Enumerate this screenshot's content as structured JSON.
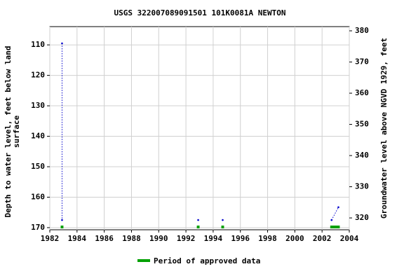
{
  "chart_data": {
    "type": "line",
    "title": "USGS 322007089091501 101K0081A NEWTON",
    "ylabel": [
      "Depth to water level, feet below land",
      "surface"
    ],
    "y2label": "Groundwater level above NGVD 1929, feet",
    "x": [
      1982.9,
      1982.9,
      null,
      1992.9,
      null,
      1994.7,
      null,
      2002.7,
      2003.2
    ],
    "series": [
      {
        "name": "Depth to water level",
        "color": "#0000cc",
        "values": [
          109.5,
          167.5,
          null,
          167.5,
          null,
          167.5,
          null,
          167.5,
          163.3
        ]
      }
    ],
    "approved_periods": {
      "name": "Period of approved data",
      "color": "#00a000",
      "start": [
        1982.8,
        1992.8,
        1994.6,
        2002.6
      ],
      "end": [
        1983.0,
        1993.0,
        1994.8,
        2003.3
      ]
    },
    "xlim": [
      1982,
      2004
    ],
    "xticks": [
      1982,
      1984,
      1986,
      1988,
      1990,
      1992,
      1994,
      1996,
      1998,
      2000,
      2002,
      2004
    ],
    "ylim": [
      170.7,
      104
    ],
    "yticks": [
      110,
      120,
      130,
      140,
      150,
      160,
      170
    ],
    "y2lim": [
      316.2,
      381.35
    ],
    "y2ticks": [
      320,
      330,
      340,
      350,
      360,
      370,
      380
    ],
    "grid": true
  }
}
